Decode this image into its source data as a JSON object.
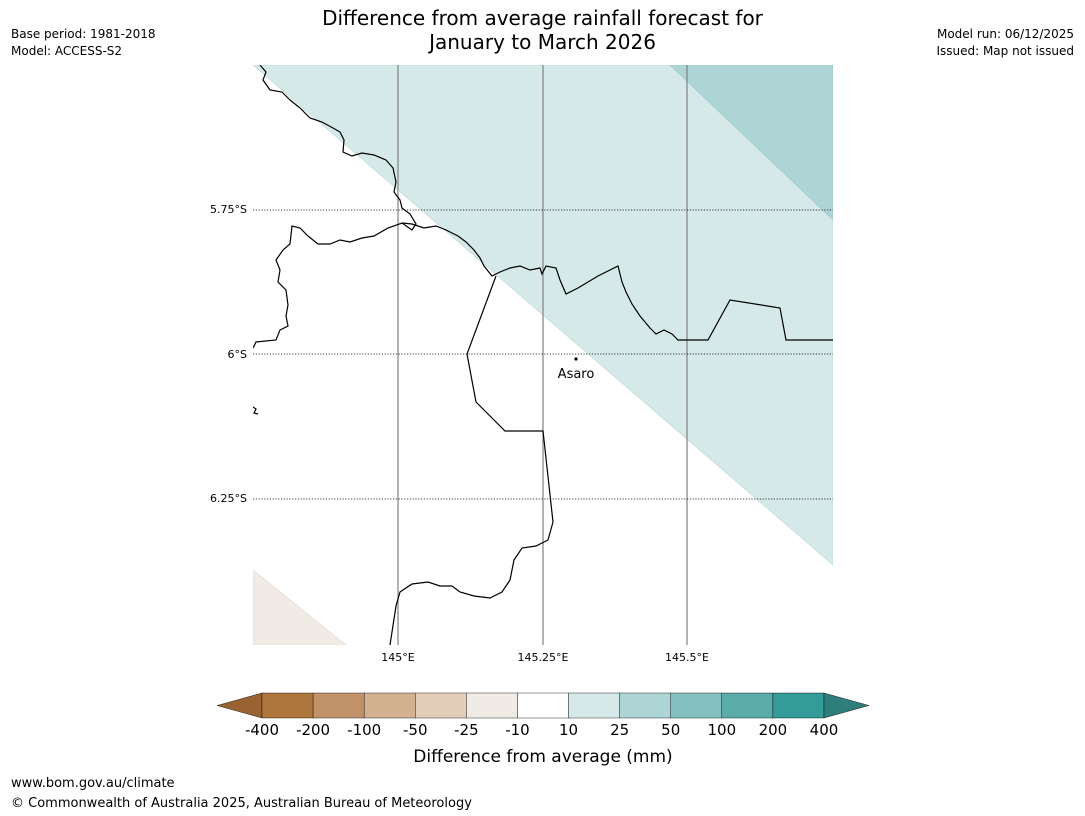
{
  "header": {
    "title_line1": "Difference from average rainfall forecast for",
    "title_line2": "January to March 2026",
    "base_period": "Base period: 1981-2018",
    "model": "Model: ACCESS-S2",
    "model_run": "Model run: 06/12/2025",
    "issued": "Issued: Map not issued"
  },
  "map": {
    "latitude_labels": [
      "5.75°S",
      "6°S",
      "6.25°S"
    ],
    "longitude_labels": [
      "145°E",
      "145.25°E",
      "145.5°E"
    ],
    "place": {
      "name": "Asaro"
    }
  },
  "legend": {
    "title": "Difference from average (mm)",
    "tick_labels": [
      "-400",
      "-200",
      "-100",
      "-50",
      "-25",
      "-10",
      "10",
      "25",
      "50",
      "100",
      "200",
      "400"
    ],
    "colors": {
      "extend_low": "#9a6131",
      "bins": [
        "#ae763d",
        "#c19169",
        "#d3b191",
        "#e4cdb9",
        "#f1ebe5",
        "#ffffff",
        "#d5e9e8",
        "#aed5d5",
        "#83c0bf",
        "#5aacab",
        "#339b98"
      ],
      "extend_high": "#2e7f7c"
    }
  },
  "footer": {
    "url": "www.bom.gov.au/climate",
    "copyright": "© Commonwealth of Australia 2025, Australian Bureau of Meteorology"
  }
}
